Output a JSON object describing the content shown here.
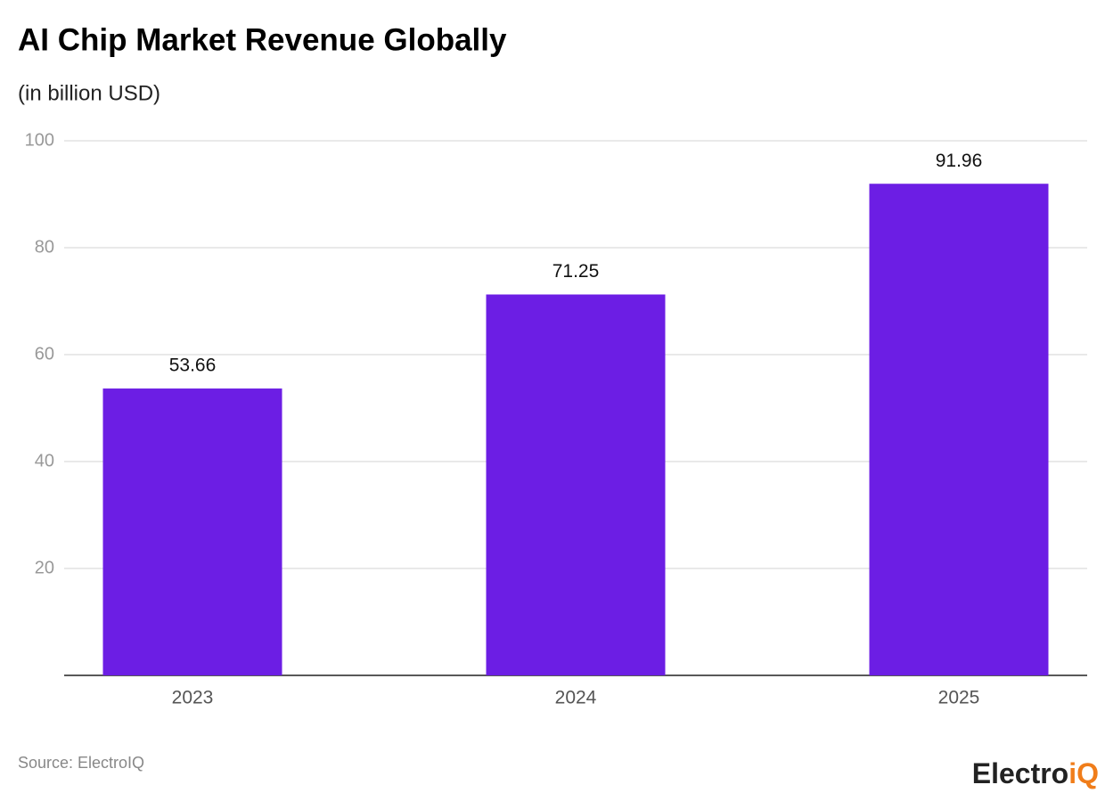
{
  "chart_data": {
    "type": "bar",
    "title": "AI Chip Market Revenue Globally",
    "subtitle": "(in billion USD)",
    "categories": [
      "2023",
      "2024",
      "2025"
    ],
    "values": [
      53.66,
      71.25,
      91.96
    ],
    "color": "#6c1ee4",
    "ylim": [
      0,
      100
    ],
    "yticks": [
      20,
      40,
      60,
      80,
      100
    ],
    "grid": true,
    "source": "Source: ElectroIQ",
    "logo": {
      "main": "Electro",
      "accent": "iQ"
    }
  }
}
